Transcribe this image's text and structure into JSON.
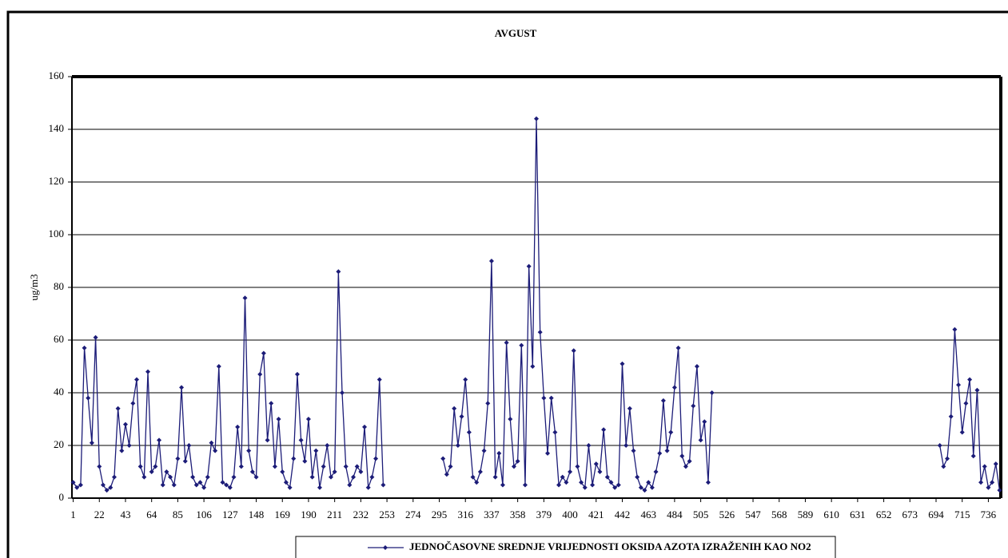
{
  "chart_data": {
    "type": "line",
    "title": "AVGUST",
    "y_label": "ug/m3",
    "xlim": [
      0,
      746
    ],
    "ylim": [
      0,
      160
    ],
    "xticks": [
      1,
      22,
      43,
      64,
      85,
      106,
      127,
      148,
      169,
      190,
      211,
      232,
      253,
      274,
      295,
      316,
      337,
      358,
      379,
      400,
      421,
      442,
      463,
      484,
      505,
      526,
      547,
      568,
      589,
      610,
      631,
      652,
      673,
      694,
      715,
      736
    ],
    "yticks": [
      0,
      20,
      40,
      60,
      80,
      100,
      120,
      140,
      160
    ],
    "grid": true,
    "legend": "bottom",
    "x": [
      1,
      4,
      7,
      10,
      13,
      16,
      19,
      22,
      25,
      28,
      31,
      34,
      37,
      40,
      43,
      46,
      49,
      52,
      55,
      58,
      61,
      64,
      67,
      70,
      73,
      76,
      79,
      82,
      85,
      88,
      91,
      94,
      97,
      100,
      103,
      106,
      109,
      112,
      115,
      118,
      121,
      124,
      127,
      130,
      133,
      136,
      139,
      142,
      145,
      148,
      151,
      154,
      157,
      160,
      163,
      166,
      169,
      172,
      175,
      178,
      181,
      184,
      187,
      190,
      193,
      196,
      199,
      202,
      205,
      208,
      211,
      214,
      217,
      220,
      223,
      226,
      229,
      232,
      235,
      238,
      241,
      244,
      247,
      250,
      253,
      298,
      301,
      304,
      307,
      310,
      313,
      316,
      319,
      322,
      325,
      328,
      331,
      334,
      337,
      340,
      343,
      346,
      349,
      352,
      355,
      358,
      361,
      364,
      367,
      370,
      373,
      376,
      379,
      382,
      385,
      388,
      391,
      394,
      397,
      400,
      403,
      406,
      409,
      412,
      415,
      418,
      421,
      424,
      427,
      430,
      433,
      436,
      439,
      442,
      445,
      448,
      451,
      454,
      457,
      460,
      463,
      466,
      469,
      472,
      475,
      478,
      481,
      484,
      487,
      490,
      493,
      496,
      499,
      502,
      505,
      508,
      511,
      514,
      517,
      697,
      700,
      703,
      706,
      709,
      712,
      715,
      718,
      721,
      724,
      727,
      730,
      733,
      736,
      739,
      742,
      745
    ],
    "series": [
      {
        "name": "JEDNOČASOVNE SREDNJE VRIJEDNOSTI OKSIDA AZOTA IZRAŽENIH KAO NO2",
        "color": "#1c1c78",
        "values": [
          6,
          4,
          5,
          57,
          38,
          21,
          61,
          12,
          5,
          3,
          4,
          8,
          34,
          18,
          28,
          20,
          36,
          45,
          12,
          8,
          48,
          10,
          12,
          22,
          5,
          10,
          8,
          5,
          15,
          42,
          14,
          20,
          8,
          5,
          6,
          4,
          8,
          21,
          18,
          50,
          6,
          5,
          4,
          8,
          27,
          12,
          76,
          18,
          10,
          8,
          47,
          55,
          22,
          36,
          12,
          30,
          10,
          6,
          4,
          15,
          47,
          22,
          14,
          30,
          8,
          18,
          4,
          12,
          20,
          8,
          10,
          86,
          40,
          12,
          5,
          8,
          12,
          10,
          27,
          4,
          8,
          15,
          45,
          5,
          null,
          15,
          9,
          12,
          34,
          20,
          31,
          45,
          25,
          8,
          6,
          10,
          18,
          36,
          90,
          8,
          17,
          5,
          59,
          30,
          12,
          14,
          58,
          5,
          88,
          50,
          144,
          63,
          38,
          17,
          38,
          25,
          5,
          8,
          6,
          10,
          56,
          12,
          6,
          4,
          20,
          5,
          13,
          10,
          26,
          8,
          6,
          4,
          5,
          51,
          20,
          34,
          18,
          8,
          4,
          3,
          6,
          4,
          10,
          17,
          37,
          18,
          25,
          42,
          57,
          16,
          12,
          14,
          35,
          50,
          22,
          29,
          6,
          40,
          null,
          20,
          12,
          15,
          31,
          64,
          43,
          25,
          36,
          45,
          16,
          41,
          6,
          12,
          4,
          6,
          13,
          3
        ]
      }
    ]
  }
}
